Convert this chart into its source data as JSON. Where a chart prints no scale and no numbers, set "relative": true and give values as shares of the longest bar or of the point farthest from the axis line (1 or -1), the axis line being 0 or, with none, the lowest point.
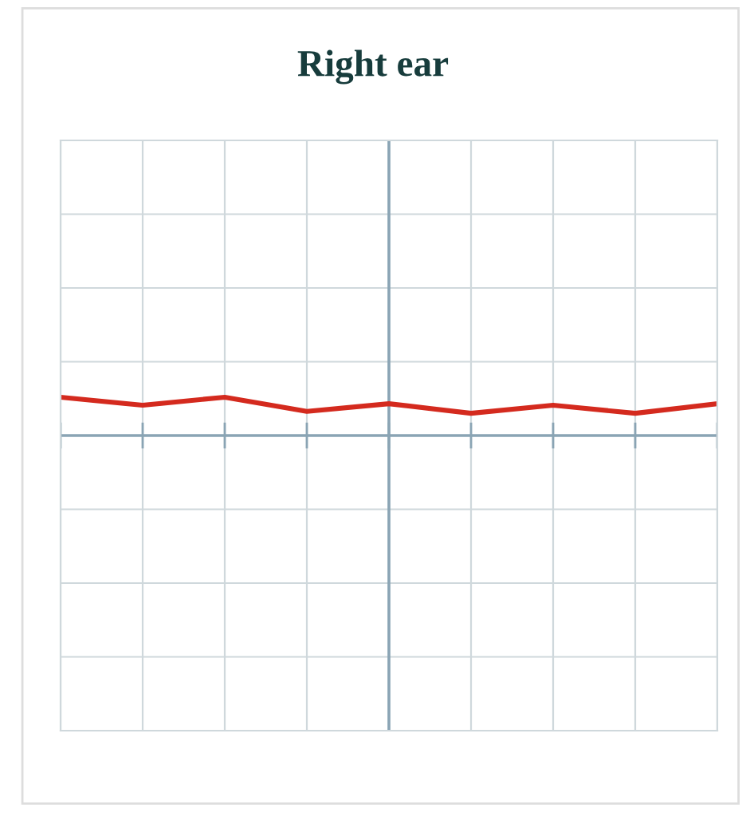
{
  "chart_data": {
    "type": "line",
    "title": "Right ear",
    "relative": true,
    "categories": [
      null,
      null,
      null,
      null,
      null,
      null,
      null,
      null,
      null
    ],
    "series": [
      {
        "color": "#d42a1e",
        "values": [
          1,
          0.79,
          1,
          0.63,
          0.83,
          0.58,
          0.79,
          0.58,
          0.83
        ]
      }
    ],
    "grid": true,
    "tick_labels": false,
    "marker": "none",
    "line_style": "solid"
  }
}
